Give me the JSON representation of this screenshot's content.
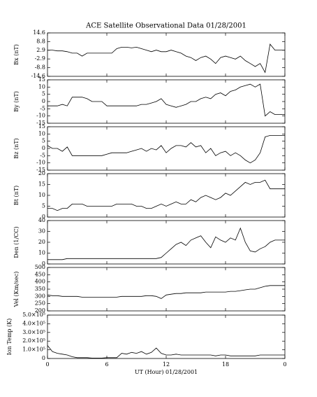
{
  "chart_data": [
    {
      "type": "line",
      "title": "ACE Satellite Observational Data   01/28/2001",
      "ylabel": "Bx (nT)",
      "color": "#000000",
      "xlim": [
        0,
        24
      ],
      "ylim": [
        -14.6,
        14.6
      ],
      "yticks": [
        -14.6,
        -8.8,
        -2.9,
        2.9,
        8.8,
        14.6
      ],
      "x": [
        0,
        0.5,
        1,
        1.5,
        2,
        2.5,
        3,
        3.5,
        4,
        4.5,
        5,
        5.5,
        6,
        6.5,
        7,
        7.5,
        8,
        8.5,
        9,
        9.5,
        10,
        10.5,
        11,
        11.5,
        12,
        12.5,
        13,
        13.5,
        14,
        14.5,
        15,
        15.5,
        16,
        16.5,
        17,
        17.5,
        18,
        18.5,
        19,
        19.5,
        20,
        20.5,
        21,
        21.5,
        22,
        22.5,
        23,
        23.5,
        24
      ],
      "values": [
        3,
        3,
        2.5,
        2.5,
        2,
        1,
        1,
        -1,
        1,
        1,
        1,
        1,
        1,
        1,
        4,
        5,
        5,
        4.5,
        5,
        4,
        3,
        2,
        3,
        2,
        2,
        3,
        2,
        1,
        -1,
        -2,
        -4,
        -2,
        -1,
        -3,
        -6,
        -2,
        -1,
        -2,
        -3,
        -1,
        -4,
        -6,
        -8,
        -6,
        -12,
        7,
        3,
        3,
        3
      ]
    },
    {
      "type": "line",
      "ylabel": "By (nT)",
      "color": "#000000",
      "xlim": [
        0,
        24
      ],
      "ylim": [
        -15,
        15
      ],
      "yticks": [
        -15,
        -10,
        -5,
        0,
        5,
        10,
        15
      ],
      "x": [
        0,
        0.5,
        1,
        1.5,
        2,
        2.5,
        3,
        3.5,
        4,
        4.5,
        5,
        5.5,
        6,
        6.5,
        7,
        7.5,
        8,
        8.5,
        9,
        9.5,
        10,
        10.5,
        11,
        11.5,
        12,
        12.5,
        13,
        13.5,
        14,
        14.5,
        15,
        15.5,
        16,
        16.5,
        17,
        17.5,
        18,
        18.5,
        19,
        19.5,
        20,
        20.5,
        21,
        21.5,
        22,
        22.5,
        23,
        23.5,
        24
      ],
      "values": [
        -3,
        -3,
        -3,
        -2,
        -3,
        3,
        3,
        3,
        2,
        0,
        0,
        0,
        -3,
        -3,
        -3,
        -3,
        -3,
        -3,
        -3,
        -2,
        -2,
        -1,
        0,
        2,
        -2,
        -3,
        -4,
        -3,
        -2,
        0,
        0,
        2,
        3,
        2,
        5,
        6,
        4,
        7,
        8,
        10,
        11,
        12,
        10,
        12,
        -10,
        -7,
        -9,
        -9,
        -9
      ]
    },
    {
      "type": "line",
      "ylabel": "Bz (nT)",
      "color": "#000000",
      "xlim": [
        0,
        24
      ],
      "ylim": [
        -15,
        15
      ],
      "yticks": [
        -15,
        -10,
        -5,
        0,
        5,
        10,
        15
      ],
      "x": [
        0,
        0.5,
        1,
        1.5,
        2,
        2.5,
        3,
        3.5,
        4,
        4.5,
        5,
        5.5,
        6,
        6.5,
        7,
        7.5,
        8,
        8.5,
        9,
        9.5,
        10,
        10.5,
        11,
        11.5,
        12,
        12.5,
        13,
        13.5,
        14,
        14.5,
        15,
        15.5,
        16,
        16.5,
        17,
        17.5,
        18,
        18.5,
        19,
        19.5,
        20,
        20.5,
        21,
        21.5,
        22,
        22.5,
        23,
        23.5,
        24
      ],
      "values": [
        2,
        0,
        0,
        -2,
        1,
        -5,
        -5,
        -5,
        -5,
        -5,
        -5,
        -5,
        -4,
        -3,
        -3,
        -3,
        -3,
        -2,
        -1,
        0,
        -2,
        0,
        -1,
        2,
        -3,
        0,
        2,
        2,
        1,
        4,
        1,
        2,
        -3,
        0,
        -5,
        -3,
        -2,
        -5,
        -3,
        -5,
        -8,
        -10,
        -8,
        -3,
        8,
        9,
        9,
        9,
        9
      ]
    },
    {
      "type": "line",
      "ylabel": "Bt (nT)",
      "color": "#000000",
      "xlim": [
        0,
        24
      ],
      "ylim": [
        0,
        20
      ],
      "yticks": [
        0,
        5,
        10,
        15,
        20
      ],
      "x": [
        0,
        0.5,
        1,
        1.5,
        2,
        2.5,
        3,
        3.5,
        4,
        4.5,
        5,
        5.5,
        6,
        6.5,
        7,
        7.5,
        8,
        8.5,
        9,
        9.5,
        10,
        10.5,
        11,
        11.5,
        12,
        12.5,
        13,
        13.5,
        14,
        14.5,
        15,
        15.5,
        16,
        16.5,
        17,
        17.5,
        18,
        18.5,
        19,
        19.5,
        20,
        20.5,
        21,
        21.5,
        22,
        22.5,
        23,
        23.5,
        24
      ],
      "values": [
        4,
        4,
        3,
        4,
        4,
        6,
        6,
        6,
        5,
        5,
        5,
        5,
        5,
        5,
        6,
        6,
        6,
        6,
        5,
        5,
        4,
        4,
        5,
        6,
        5,
        6,
        7,
        6,
        6,
        8,
        7,
        9,
        10,
        9,
        8,
        9,
        11,
        10,
        12,
        14,
        16,
        15,
        16,
        16,
        17,
        13,
        13,
        13,
        13
      ]
    },
    {
      "type": "line",
      "ylabel": "Den (1/CC)",
      "color": "#000000",
      "xlim": [
        0,
        24
      ],
      "ylim": [
        0,
        40
      ],
      "yticks": [
        0,
        10,
        20,
        30,
        40
      ],
      "x": [
        0,
        0.5,
        1,
        1.5,
        2,
        2.5,
        3,
        3.5,
        4,
        4.5,
        5,
        5.5,
        6,
        6.5,
        7,
        7.5,
        8,
        8.5,
        9,
        9.5,
        10,
        10.5,
        11,
        11.5,
        12,
        12.5,
        13,
        13.5,
        14,
        14.5,
        15,
        15.5,
        16,
        16.5,
        17,
        17.5,
        18,
        18.5,
        19,
        19.5,
        20,
        20.5,
        21,
        21.5,
        22,
        22.5,
        23,
        23.5,
        24
      ],
      "values": [
        4,
        4,
        4,
        4,
        5,
        5,
        5,
        5,
        5,
        5,
        5,
        5,
        5,
        5,
        5,
        5,
        5,
        5,
        5,
        5,
        5,
        5,
        5,
        6,
        10,
        14,
        18,
        20,
        17,
        22,
        24,
        26,
        20,
        15,
        25,
        22,
        20,
        24,
        22,
        33,
        20,
        12,
        11,
        14,
        16,
        20,
        22,
        22,
        22
      ]
    },
    {
      "type": "line",
      "ylabel": "Vel (Km/sec)",
      "color": "#000000",
      "xlim": [
        0,
        24
      ],
      "ylim": [
        200,
        500
      ],
      "yticks": [
        200,
        250,
        300,
        350,
        400,
        450,
        500
      ],
      "x": [
        0,
        0.5,
        1,
        1.5,
        2,
        2.5,
        3,
        3.5,
        4,
        4.5,
        5,
        5.5,
        6,
        6.5,
        7,
        7.5,
        8,
        8.5,
        9,
        9.5,
        10,
        10.5,
        11,
        11.5,
        12,
        12.5,
        13,
        13.5,
        14,
        14.5,
        15,
        15.5,
        16,
        16.5,
        17,
        17.5,
        18,
        18.5,
        19,
        19.5,
        20,
        20.5,
        21,
        21.5,
        22,
        22.5,
        23,
        23.5,
        24
      ],
      "values": [
        310,
        305,
        305,
        300,
        300,
        300,
        300,
        295,
        295,
        295,
        295,
        295,
        295,
        295,
        295,
        300,
        300,
        300,
        300,
        300,
        305,
        305,
        300,
        285,
        310,
        315,
        320,
        320,
        325,
        325,
        325,
        325,
        330,
        330,
        330,
        330,
        330,
        335,
        335,
        340,
        345,
        350,
        350,
        360,
        370,
        375,
        375,
        375,
        375
      ]
    },
    {
      "type": "line",
      "ylabel": "Ion Temp (K)",
      "xlabel": "UT (Hour)   01/28/2001",
      "color": "#000000",
      "xlim": [
        0,
        24
      ],
      "xticks": [
        0,
        6,
        12,
        18,
        {
          "value": 24,
          "label": "0"
        }
      ],
      "ylim": [
        0,
        500000
      ],
      "yticks": [
        0,
        {
          "value": 100000,
          "label": "1.0×10⁵"
        },
        {
          "value": 200000,
          "label": "2.0×10⁵"
        },
        {
          "value": 300000,
          "label": "3.0×10⁵"
        },
        {
          "value": 400000,
          "label": "4.0×10⁵"
        },
        {
          "value": 500000,
          "label": "5.0×10⁵"
        }
      ],
      "x": [
        0,
        0.5,
        1,
        1.5,
        2,
        2.5,
        3,
        3.5,
        4,
        4.5,
        5,
        5.5,
        6,
        6.5,
        7,
        7.5,
        8,
        8.5,
        9,
        9.5,
        10,
        10.5,
        11,
        11.5,
        12,
        12.5,
        13,
        13.5,
        14,
        14.5,
        15,
        15.5,
        16,
        16.5,
        17,
        17.5,
        18,
        18.5,
        19,
        19.5,
        20,
        20.5,
        21,
        21.5,
        22,
        22.5,
        23,
        23.5,
        24
      ],
      "values": [
        150000,
        80000,
        60000,
        50000,
        40000,
        20000,
        10000,
        10000,
        10000,
        5000,
        5000,
        5000,
        10000,
        10000,
        10000,
        60000,
        50000,
        70000,
        60000,
        80000,
        50000,
        70000,
        120000,
        60000,
        40000,
        40000,
        50000,
        40000,
        40000,
        40000,
        40000,
        40000,
        40000,
        40000,
        30000,
        40000,
        40000,
        30000,
        30000,
        30000,
        30000,
        30000,
        30000,
        40000,
        40000,
        40000,
        40000,
        40000,
        40000
      ]
    }
  ]
}
